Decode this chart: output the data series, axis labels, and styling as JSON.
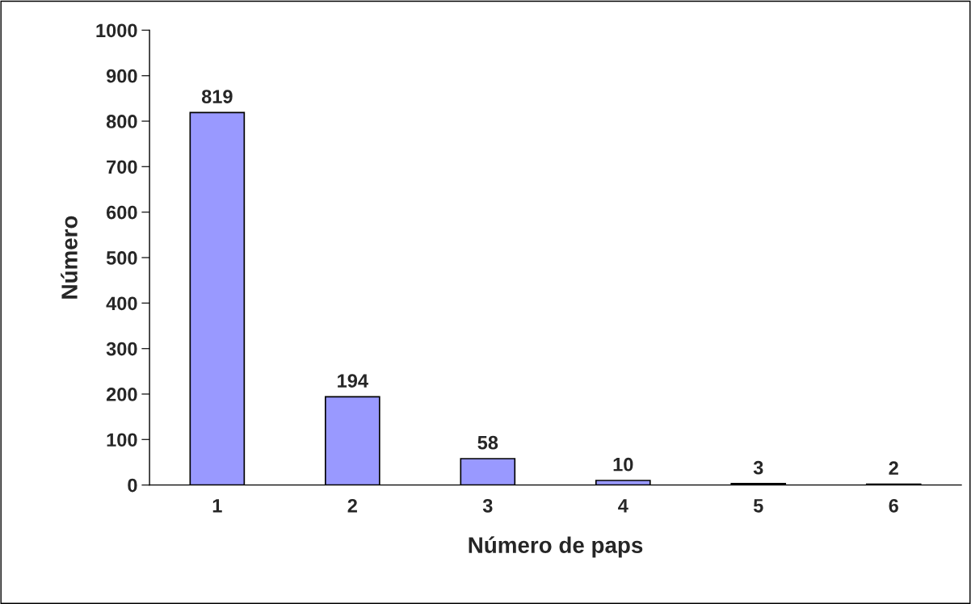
{
  "chart_data": {
    "type": "bar",
    "xlabel": "Número de paps",
    "ylabel": "Número",
    "categories": [
      "1",
      "2",
      "3",
      "4",
      "5",
      "6"
    ],
    "values": [
      819,
      194,
      58,
      10,
      3,
      2
    ],
    "color": "#9999ff",
    "ylim": [
      0,
      1000
    ],
    "yticks": [
      0,
      100,
      200,
      300,
      400,
      500,
      600,
      700,
      800,
      900,
      1000
    ],
    "data_labels": true,
    "grid": false,
    "legend": false
  }
}
